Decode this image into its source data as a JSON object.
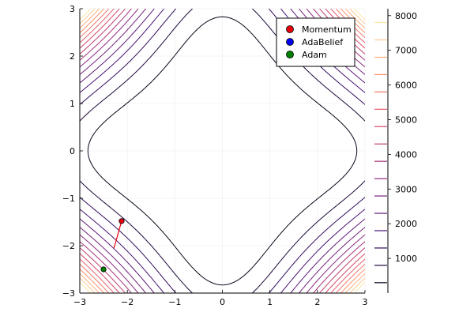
{
  "chart_data": {
    "type": "contour",
    "title": "",
    "xlabel": "",
    "ylabel": "",
    "xlim": [
      -3,
      3
    ],
    "ylim": [
      -3,
      3
    ],
    "x_ticks": [
      "-3",
      "-2",
      "-1",
      "0",
      "1",
      "2",
      "3"
    ],
    "y_ticks": [
      "-3",
      "-2",
      "-1",
      "0",
      "1",
      "2",
      "3"
    ],
    "grid": true,
    "legend_position": "top-right",
    "colorbar": {
      "min": 0,
      "max": 8200,
      "ticks": [
        "1000",
        "2000",
        "3000",
        "4000",
        "5000",
        "6000",
        "7000",
        "8000"
      ],
      "tick_values": [
        1000,
        2000,
        3000,
        4000,
        5000,
        6000,
        7000,
        8000
      ],
      "contour_levels": [
        300,
        800,
        1300,
        1800,
        2300,
        2800,
        3300,
        3800,
        4300,
        4800,
        5300,
        5800,
        6300,
        6800,
        7300,
        7800
      ],
      "colormap": [
        "#000004",
        "#3b0f70",
        "#8c2981",
        "#de4968",
        "#fe9f6d",
        "#fcfdbf"
      ]
    },
    "series": [
      {
        "name": "Momentum",
        "color": "#e8000b",
        "path": [
          [
            -2.12,
            -1.48
          ],
          [
            -2.28,
            -2.05
          ]
        ],
        "marker": [
          -2.12,
          -1.48
        ]
      },
      {
        "name": "AdaBelief",
        "color": "#0000ee",
        "path": [],
        "marker": null
      },
      {
        "name": "Adam",
        "color": "#008000",
        "path": [],
        "marker": [
          -2.5,
          -2.5
        ]
      }
    ]
  }
}
